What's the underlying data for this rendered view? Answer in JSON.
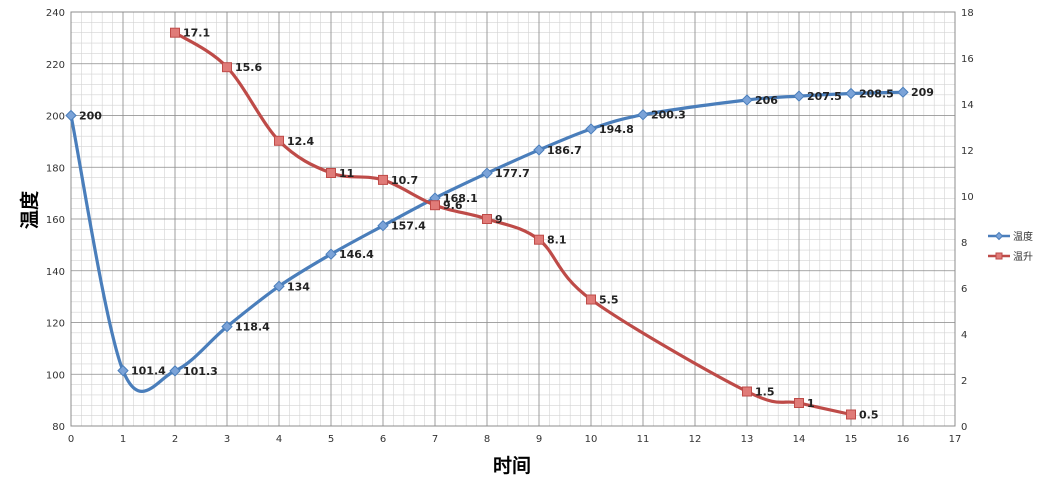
{
  "chart_data": {
    "type": "line",
    "title": "",
    "xlabel": "时间",
    "ylabel": "温度",
    "y2label": "",
    "xlim": [
      0,
      17
    ],
    "ylim": [
      80,
      240
    ],
    "y2lim": [
      0,
      18
    ],
    "x_ticks": [
      "0",
      "1",
      "2",
      "3",
      "4",
      "5",
      "6",
      "7",
      "8",
      "9",
      "10",
      "11",
      "12",
      "13",
      "14",
      "15",
      "16",
      "17"
    ],
    "y_ticks": [
      "80",
      "100",
      "120",
      "140",
      "160",
      "180",
      "200",
      "220",
      "240"
    ],
    "y2_ticks": [
      "0",
      "2",
      "4",
      "6",
      "8",
      "10",
      "12",
      "14",
      "16",
      "18"
    ],
    "grid": true,
    "legend_position": "right",
    "series": [
      {
        "name": "温度",
        "axis": "left",
        "color": "#4a7ebb",
        "marker": "diamond",
        "x": [
          0,
          1,
          2,
          3,
          4,
          5,
          6,
          7,
          8,
          9,
          10,
          11,
          13,
          14,
          15,
          16
        ],
        "values": [
          200,
          101.4,
          101.3,
          118.4,
          134,
          146.4,
          157.4,
          168.1,
          177.7,
          186.7,
          194.8,
          200.3,
          206,
          207.5,
          208.5,
          209
        ],
        "labels": [
          "200",
          "101.4",
          "101.3",
          "118.4",
          "134",
          "146.4",
          "157.4",
          "168.1",
          "177.7",
          "186.7",
          "194.8",
          "200.3",
          "206",
          "207.5",
          "208.5",
          "209"
        ]
      },
      {
        "name": "温升",
        "axis": "right",
        "color": "#be4b48",
        "marker": "square",
        "x": [
          2,
          3,
          4,
          5,
          6,
          7,
          8,
          9,
          10,
          13,
          14,
          15
        ],
        "values": [
          17.1,
          15.6,
          12.4,
          11,
          10.7,
          9.6,
          9,
          8.1,
          5.5,
          1.5,
          1,
          0.5
        ],
        "labels": [
          "17.1",
          "15.6",
          "12.4",
          "11",
          "10.7",
          "9.6",
          "9",
          "8.1",
          "5.5",
          "1.5",
          "1",
          "0.5"
        ]
      }
    ]
  }
}
